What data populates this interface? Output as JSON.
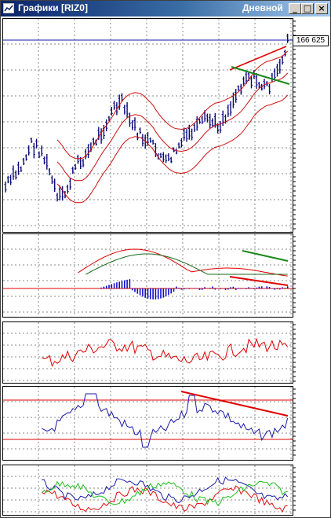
{
  "window": {
    "title": "Графики [RIZ0]",
    "period": "Дневной",
    "buttons": {
      "minimize": "_",
      "maximize": "□",
      "close": "×"
    }
  },
  "price_label": "166 625",
  "colors": {
    "price_bars": "#0b0b78",
    "bands": "#d01010",
    "horizontal_line": "#1a1aa8",
    "trend_red": "#e00000",
    "trend_green": "#1a8a1a",
    "histogram": "#1010c8",
    "grid": "#8a8a8a"
  },
  "chart_data": [
    {
      "type": "candlestick",
      "panel": "price",
      "bars": 110,
      "horizontal_line": "166 625"
    },
    {
      "type": "line",
      "panel": "macd",
      "series": [
        "macd",
        "signal",
        "histogram"
      ]
    },
    {
      "type": "line",
      "panel": "oscillator-1"
    },
    {
      "type": "line",
      "panel": "oscillator-2",
      "levels": 2
    },
    {
      "type": "line",
      "panel": "oscillator-3",
      "series": [
        "blue",
        "red",
        "green"
      ]
    }
  ]
}
